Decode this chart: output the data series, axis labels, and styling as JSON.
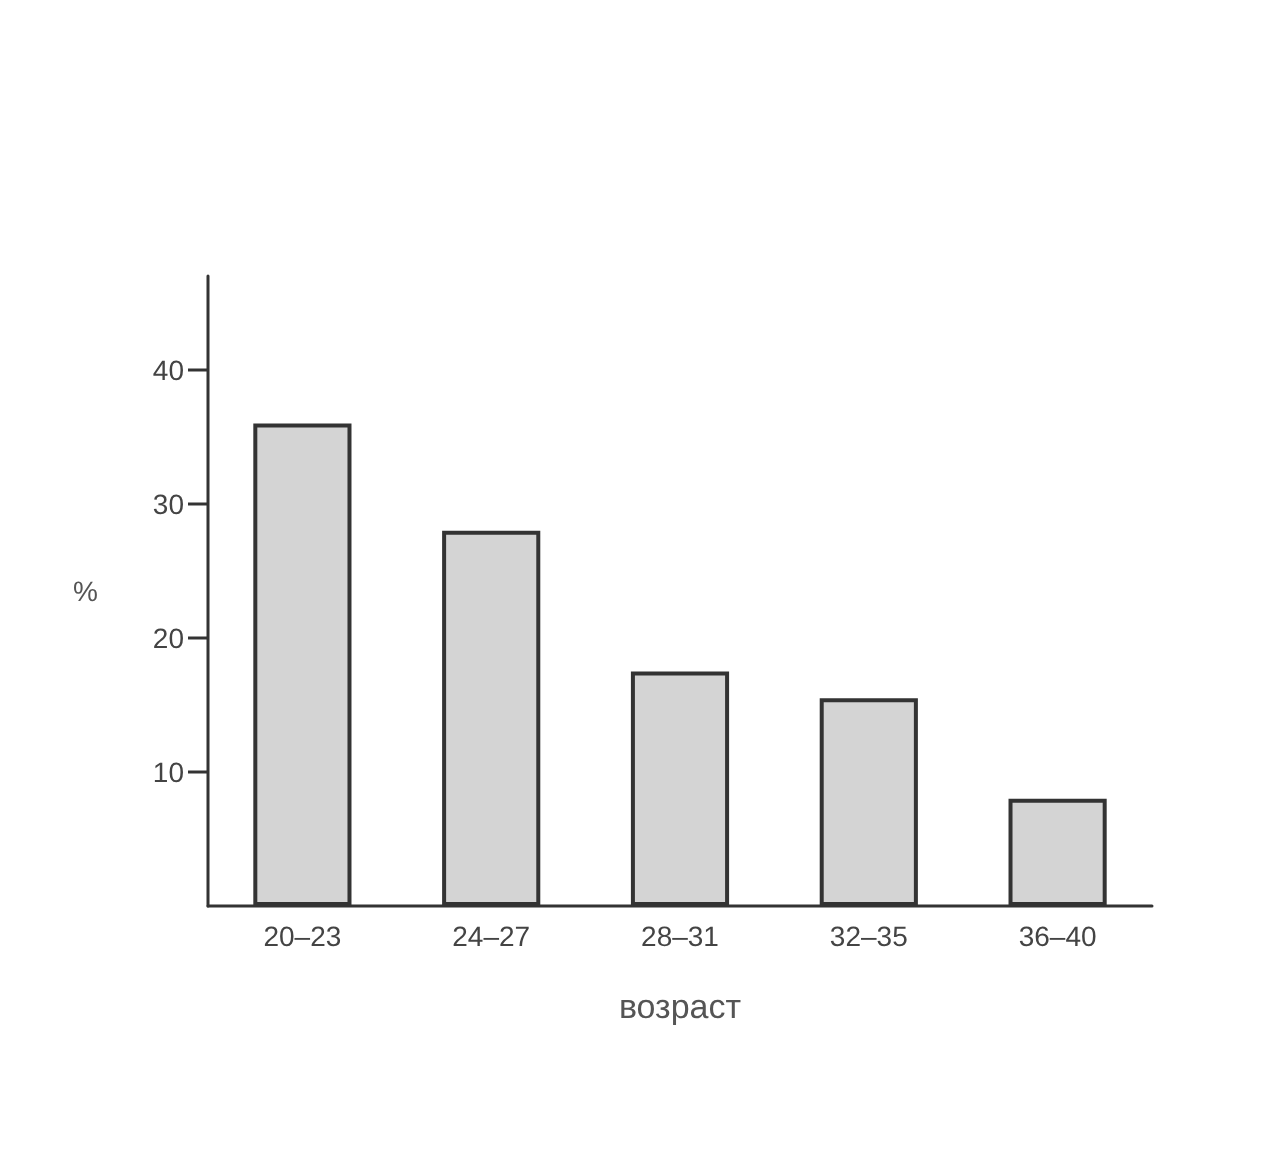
{
  "chart_data": {
    "type": "bar",
    "xlabel": "возраст",
    "ylabel": "%",
    "categories": [
      "20–23",
      "24–27",
      "28–31",
      "32–35",
      "36–40"
    ],
    "values": [
      36,
      28,
      17.5,
      15.5,
      8
    ],
    "color": "#d4d4d4",
    "ylim": [
      0,
      47
    ],
    "yticks": [
      10,
      20,
      30,
      40
    ],
    "grid": false
  }
}
